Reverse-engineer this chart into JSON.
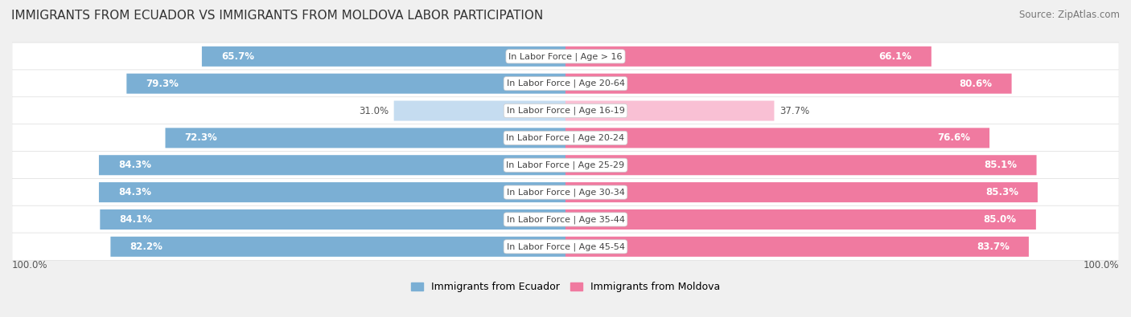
{
  "title": "IMMIGRANTS FROM ECUADOR VS IMMIGRANTS FROM MOLDOVA LABOR PARTICIPATION",
  "source": "Source: ZipAtlas.com",
  "categories": [
    "In Labor Force | Age > 16",
    "In Labor Force | Age 20-64",
    "In Labor Force | Age 16-19",
    "In Labor Force | Age 20-24",
    "In Labor Force | Age 25-29",
    "In Labor Force | Age 30-34",
    "In Labor Force | Age 35-44",
    "In Labor Force | Age 45-54"
  ],
  "ecuador_values": [
    65.7,
    79.3,
    31.0,
    72.3,
    84.3,
    84.3,
    84.1,
    82.2
  ],
  "moldova_values": [
    66.1,
    80.6,
    37.7,
    76.6,
    85.1,
    85.3,
    85.0,
    83.7
  ],
  "ecuador_color": "#7BAFD4",
  "ecuador_color_light": "#C5DCF0",
  "moldova_color": "#F07AA0",
  "moldova_color_light": "#F9C0D4",
  "bg_color": "#f0f0f0",
  "row_bg_odd": "#f8f8f8",
  "row_bg_even": "#ececec",
  "label_fontsize": 8.0,
  "value_fontsize": 8.5,
  "title_fontsize": 11,
  "legend_fontsize": 9,
  "cat_label_fontsize": 8.0
}
